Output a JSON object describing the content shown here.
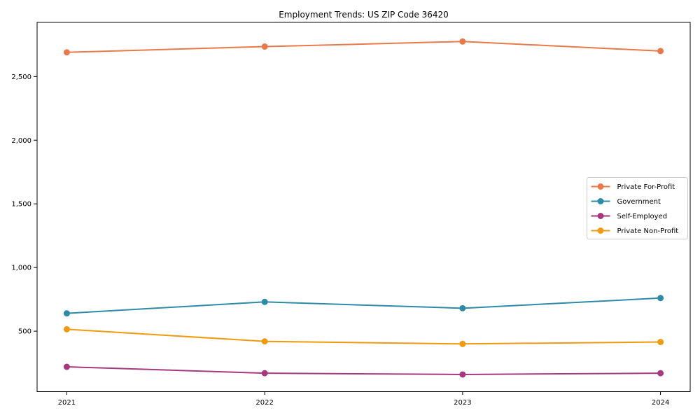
{
  "chart_data": {
    "type": "line",
    "title": "Employment Trends: US ZIP Code 36420",
    "xlabel": "",
    "ylabel": "",
    "x": [
      2021,
      2022,
      2023,
      2024
    ],
    "x_tick_labels": [
      "2021",
      "2022",
      "2023",
      "2024"
    ],
    "series": [
      {
        "name": "Private For-Profit",
        "color": "#E8794A",
        "values": [
          2690,
          2735,
          2775,
          2700
        ]
      },
      {
        "name": "Government",
        "color": "#2E8BA8",
        "values": [
          640,
          730,
          680,
          760
        ]
      },
      {
        "name": "Self-Employed",
        "color": "#A6397E",
        "values": [
          220,
          170,
          160,
          170
        ]
      },
      {
        "name": "Private Non-Profit",
        "color": "#F09A10",
        "values": [
          515,
          420,
          400,
          415
        ]
      }
    ],
    "yticks": [
      {
        "value": 500,
        "label": "500"
      },
      {
        "value": 1000,
        "label": "1,000"
      },
      {
        "value": 1500,
        "label": "1,500"
      },
      {
        "value": 2000,
        "label": "2,000"
      },
      {
        "value": 2500,
        "label": "2,500"
      }
    ],
    "xlim": [
      2020.85,
      2024.15
    ],
    "ylim": [
      25,
      2925
    ],
    "grid": false,
    "legend_position": "center-right",
    "styles": {
      "background": "#ffffff",
      "axis_color": "#000000",
      "tick_label_color": "#000000",
      "legend_border_color": "#cccccc",
      "legend_background": "#ffffff",
      "line_width": 2,
      "marker_radius": 4.5
    }
  }
}
